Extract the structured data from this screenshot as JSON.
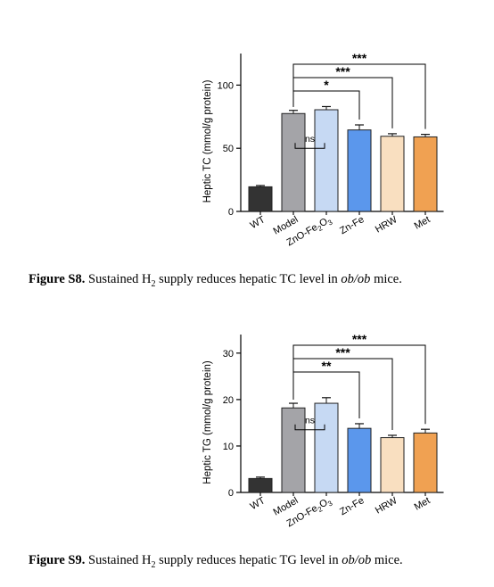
{
  "captions": [
    {
      "label": "Figure S8.",
      "pre": " Sustained H",
      "sub": "2",
      "mid": " supply reduces hepatic TC level in ",
      "em": "ob/ob",
      "post": " mice."
    },
    {
      "label": "Figure S9.",
      "pre": " Sustained H",
      "sub": "2",
      "mid": " supply reduces hepatic TG level in ",
      "em": "ob/ob",
      "post": " mice."
    }
  ],
  "chart_data": [
    {
      "type": "bar",
      "ylabel": "Heptic TC (mmol/g protein)",
      "categories": [
        "WT",
        "Model",
        "ZnO-Fe2O3",
        "Zn-Fe",
        "HRW",
        "Met"
      ],
      "category_labels": [
        {
          "base": "WT"
        },
        {
          "base": "Model"
        },
        {
          "base": "ZnO-Fe",
          "sub1": "2",
          "mid": "O",
          "sub2": "3"
        },
        {
          "base": "Zn-Fe"
        },
        {
          "base": "HRW"
        },
        {
          "base": "Met"
        }
      ],
      "values": [
        19.5,
        77.5,
        80.5,
        64.5,
        59.5,
        59
      ],
      "errors": [
        1,
        2.5,
        2.5,
        4,
        2,
        2
      ],
      "colors": [
        "#333333",
        "#a4a4a8",
        "#c6d9f3",
        "#5b97ec",
        "#f9dfc0",
        "#f0a152"
      ],
      "ylim": [
        0,
        125
      ],
      "yticks": [
        0,
        50,
        100
      ],
      "significance": [
        {
          "from": 1,
          "to": 5,
          "label": "***"
        },
        {
          "from": 1,
          "to": 4,
          "label": "***"
        },
        {
          "from": 1,
          "to": 3,
          "label": "*"
        }
      ],
      "ns": {
        "from": 1,
        "to": 2,
        "label": "ns",
        "y": 50
      }
    },
    {
      "type": "bar",
      "ylabel": "Heptic TG (mmol/g protein)",
      "categories": [
        "WT",
        "Model",
        "ZnO-Fe2O3",
        "Zn-Fe",
        "HRW",
        "Met"
      ],
      "category_labels": [
        {
          "base": "WT"
        },
        {
          "base": "Model"
        },
        {
          "base": "ZnO-Fe",
          "sub1": "2",
          "mid": "O",
          "sub2": "3"
        },
        {
          "base": "Zn-Fe"
        },
        {
          "base": "HRW"
        },
        {
          "base": "Met"
        }
      ],
      "values": [
        3,
        18.2,
        19.2,
        13.8,
        11.8,
        12.8
      ],
      "errors": [
        0.3,
        1,
        1.2,
        1,
        0.5,
        0.8
      ],
      "colors": [
        "#333333",
        "#a4a4a8",
        "#c6d9f3",
        "#5b97ec",
        "#f9dfc0",
        "#f0a152"
      ],
      "ylim": [
        0,
        34
      ],
      "yticks": [
        0,
        10,
        20,
        30
      ],
      "significance": [
        {
          "from": 1,
          "to": 5,
          "label": "***"
        },
        {
          "from": 1,
          "to": 4,
          "label": "***"
        },
        {
          "from": 1,
          "to": 3,
          "label": "**"
        }
      ],
      "ns": {
        "from": 1,
        "to": 2,
        "label": "ns",
        "y": 13.5
      }
    }
  ]
}
